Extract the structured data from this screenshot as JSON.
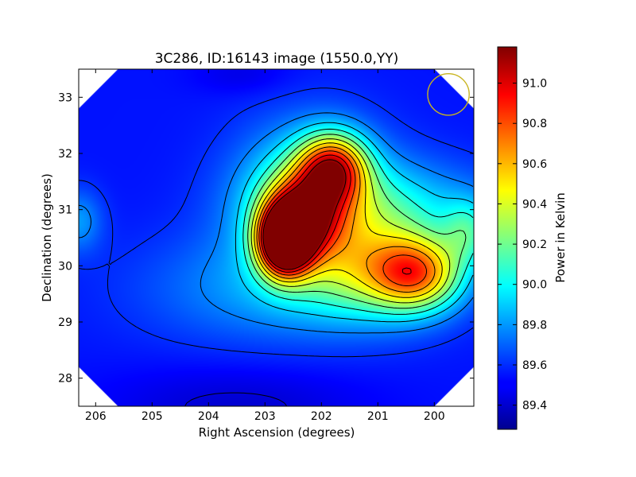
{
  "chart_data": {
    "type": "heatmap",
    "title": "3C286, ID:16143 image (1550.0,YY)",
    "xlabel": "Right Ascension (degrees)",
    "ylabel": "Declination (degrees)",
    "colorbar_label": "Power in Kelvin",
    "colormap": "jet",
    "x_reversed": true,
    "xlim": [
      206.3,
      199.3
    ],
    "ylim": [
      27.5,
      33.5
    ],
    "xticks": [
      206,
      205,
      204,
      203,
      202,
      201,
      200
    ],
    "yticks": [
      28,
      29,
      30,
      31,
      32,
      33
    ],
    "colorbar_range": [
      89.28,
      91.18
    ],
    "colorbar_ticks": [
      "89.4",
      "89.6",
      "89.8",
      "90.0",
      "90.2",
      "90.4",
      "90.6",
      "90.8",
      "91.0"
    ],
    "colorbar_tick_values": [
      89.4,
      89.6,
      89.8,
      90.0,
      90.2,
      90.4,
      90.6,
      90.8,
      91.0
    ],
    "valid_region": {
      "shape": "octagon",
      "center": [
        202.8,
        30.5
      ],
      "half_width": 3.6,
      "corner_cut": 5.8
    },
    "components": [
      {
        "ra": 202.65,
        "dec": 30.45,
        "peak": 1.85,
        "sigma_ra": 0.32,
        "sigma_dec": 0.42
      },
      {
        "ra": 202.3,
        "dec": 30.9,
        "peak": 0.9,
        "sigma_ra": 0.45,
        "sigma_dec": 0.5
      },
      {
        "ra": 201.8,
        "dec": 31.75,
        "peak": 1.05,
        "sigma_ra": 0.42,
        "sigma_dec": 0.42
      },
      {
        "ra": 202.2,
        "dec": 31.2,
        "peak": 0.55,
        "sigma_ra": 0.9,
        "sigma_dec": 0.9
      },
      {
        "ra": 200.3,
        "dec": 29.85,
        "peak": 0.85,
        "sigma_ra": 0.55,
        "sigma_dec": 0.45
      },
      {
        "ra": 201.1,
        "dec": 29.9,
        "peak": 0.55,
        "sigma_ra": 0.9,
        "sigma_dec": 0.6
      },
      {
        "ra": 200.9,
        "dec": 31.0,
        "peak": 0.4,
        "sigma_ra": 1.3,
        "sigma_dec": 0.6
      },
      {
        "ra": 202.9,
        "dec": 29.6,
        "peak": 0.25,
        "sigma_ra": 1.6,
        "sigma_dec": 0.7
      },
      {
        "ra": 206.3,
        "dec": 30.8,
        "peak": 0.25,
        "sigma_ra": 0.3,
        "sigma_dec": 0.4
      },
      {
        "ra": 199.4,
        "dec": 30.6,
        "peak": 0.35,
        "sigma_ra": 0.3,
        "sigma_dec": 0.4
      },
      {
        "ra": 203.4,
        "dec": 33.4,
        "peak": -0.08,
        "sigma_ra": 0.6,
        "sigma_dec": 0.25
      },
      {
        "ra": 203.5,
        "dec": 27.5,
        "peak": -0.12,
        "sigma_ra": 1.6,
        "sigma_dec": 0.5
      }
    ],
    "background": 89.55,
    "contour_levels": [
      89.45,
      89.6,
      89.75,
      89.9,
      90.05,
      90.2,
      90.35,
      90.5,
      90.65,
      90.8,
      90.95,
      91.1
    ],
    "beam": {
      "ra": 199.75,
      "dec": 33.05,
      "radius_deg": 0.37,
      "color": "#c8b41e"
    }
  }
}
